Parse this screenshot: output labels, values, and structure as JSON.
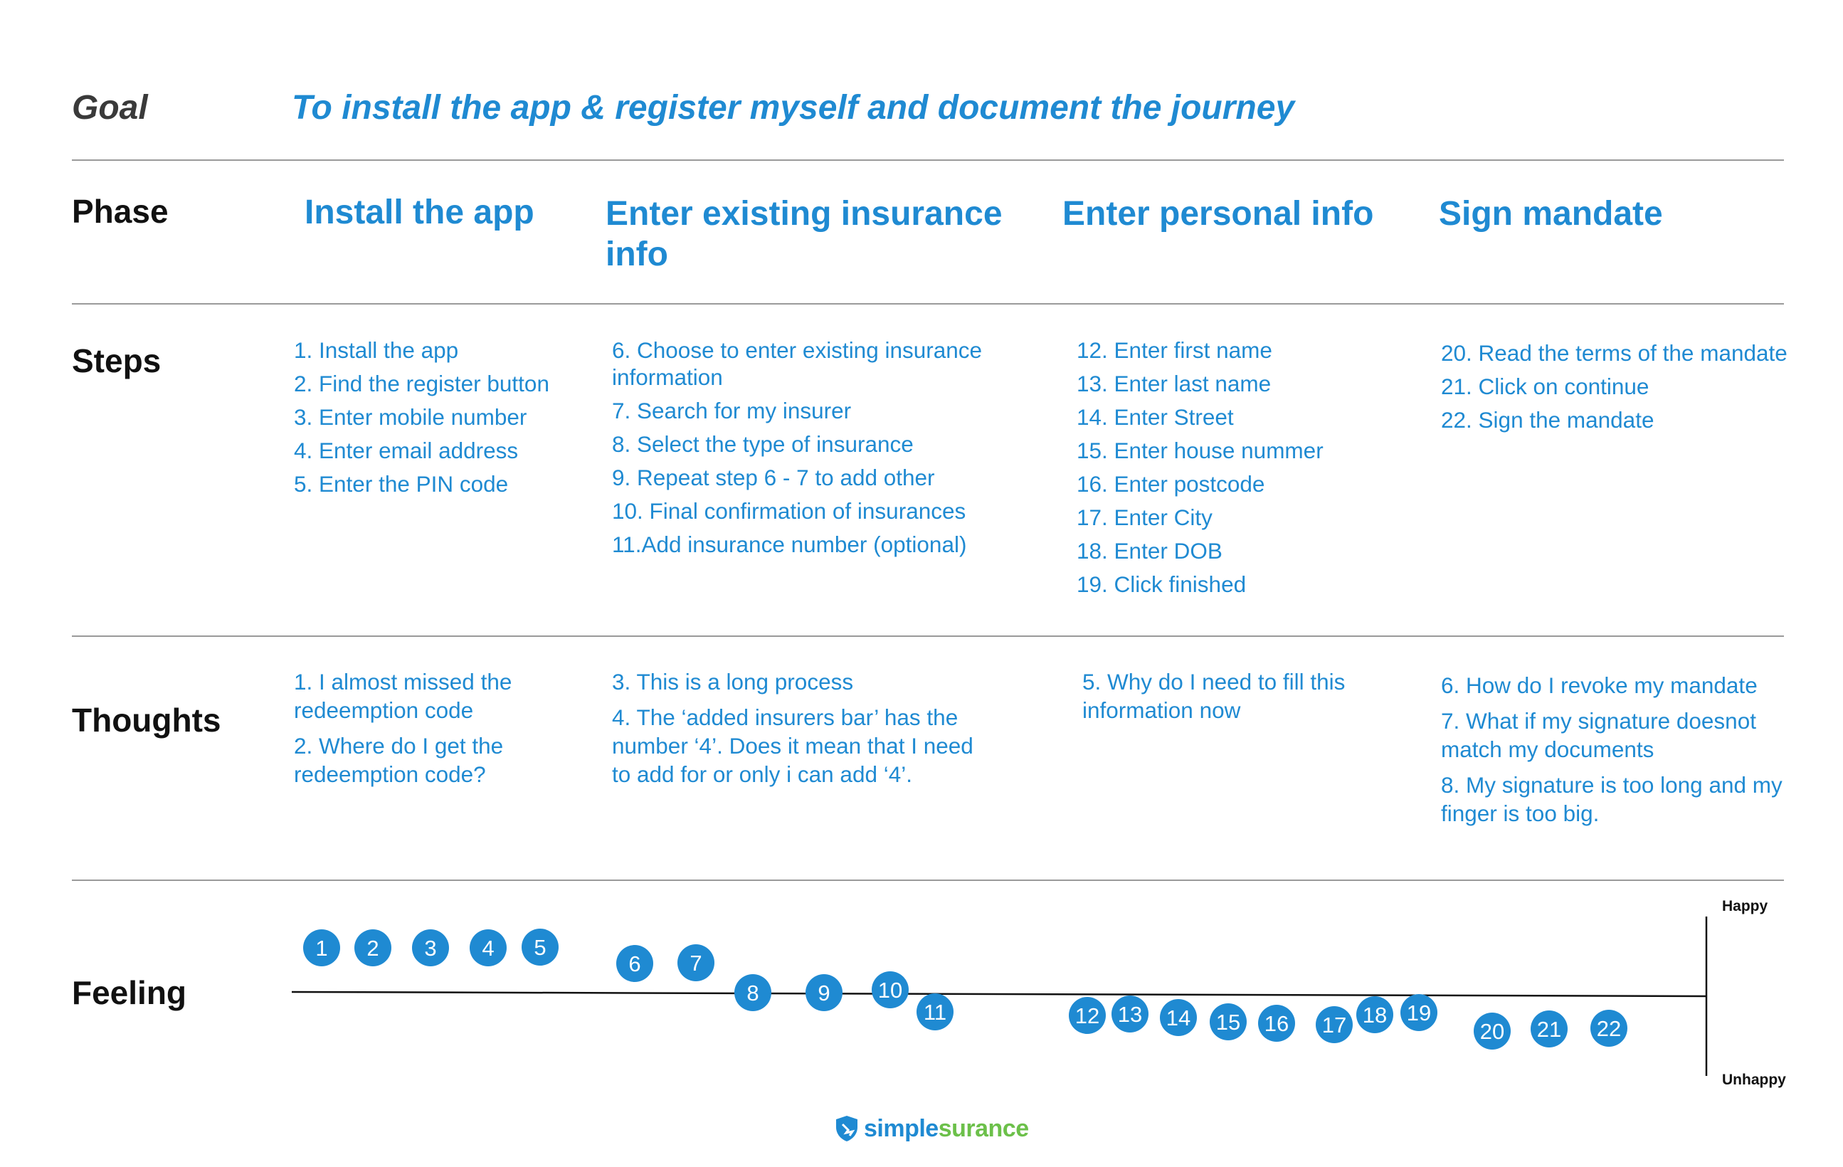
{
  "goal": {
    "label": "Goal",
    "text": "To install the app & register myself and document the journey"
  },
  "row_labels": {
    "phase": "Phase",
    "steps": "Steps",
    "thoughts": "Thoughts",
    "feeling": "Feeling"
  },
  "phases": [
    "Install the app",
    "Enter existing insurance info",
    "Enter personal info",
    "Sign mandate"
  ],
  "steps": [
    [
      "1. Install the app",
      "2. Find the register button",
      "3. Enter mobile number",
      "4. Enter email address",
      "5. Enter the PIN code"
    ],
    [
      "6. Choose to enter existing insurance information",
      "7. Search for my insurer",
      "8. Select the type of insurance",
      "9. Repeat step 6 - 7 to add other",
      "10. Final confirmation of insurances",
      "11.Add insurance number (optional)"
    ],
    [
      "12. Enter first name",
      "13. Enter last name",
      "14. Enter Street",
      "15. Enter house nummer",
      "16. Enter postcode",
      "17. Enter City",
      "18. Enter DOB",
      "19. Click finished"
    ],
    [
      "20. Read the terms of the mandate",
      "21. Click on continue",
      "22. Sign the mandate"
    ]
  ],
  "thoughts": [
    [
      "1. I almost missed the redeemption code",
      "2. Where do I get the redeemption code?"
    ],
    [
      "3. This is a long process",
      "4. The ‘added insurers bar’ has the number ‘4’. Does it mean that I need to add for or only i can add ‘4’."
    ],
    [
      "5. Why do I need to fill this information now"
    ],
    [
      "6. How do I revoke my mandate",
      "7. What if my signature doesnot match my documents",
      "8. My signature is too long and my finger is too big."
    ]
  ],
  "feeling": {
    "axis_top_label": "Happy",
    "axis_bottom_label": "Unhappy",
    "point_color": "#1f8ad2",
    "points": [
      {
        "label": "1",
        "feeling": 0.64
      },
      {
        "label": "2",
        "feeling": 0.64
      },
      {
        "label": "3",
        "feeling": 0.64
      },
      {
        "label": "4",
        "feeling": 0.64
      },
      {
        "label": "5",
        "feeling": 0.65
      },
      {
        "label": "6",
        "feeling": 0.42
      },
      {
        "label": "7",
        "feeling": 0.43
      },
      {
        "label": "8",
        "feeling": 0.01
      },
      {
        "label": "9",
        "feeling": 0.01
      },
      {
        "label": "10",
        "feeling": 0.05
      },
      {
        "label": "11",
        "feeling": -0.26
      },
      {
        "label": "12",
        "feeling": -0.31
      },
      {
        "label": "13",
        "feeling": -0.29
      },
      {
        "label": "14",
        "feeling": -0.34
      },
      {
        "label": "15",
        "feeling": -0.4
      },
      {
        "label": "16",
        "feeling": -0.42
      },
      {
        "label": "17",
        "feeling": -0.44
      },
      {
        "label": "18",
        "feeling": -0.3
      },
      {
        "label": "19",
        "feeling": -0.27
      },
      {
        "label": "20",
        "feeling": -0.53
      },
      {
        "label": "21",
        "feeling": -0.5
      },
      {
        "label": "22",
        "feeling": -0.49
      }
    ]
  },
  "logo": {
    "text_part1": "simple",
    "text_part2": "surance",
    "brand_blue": "#1f8ad2",
    "brand_green": "#6cc04a"
  }
}
